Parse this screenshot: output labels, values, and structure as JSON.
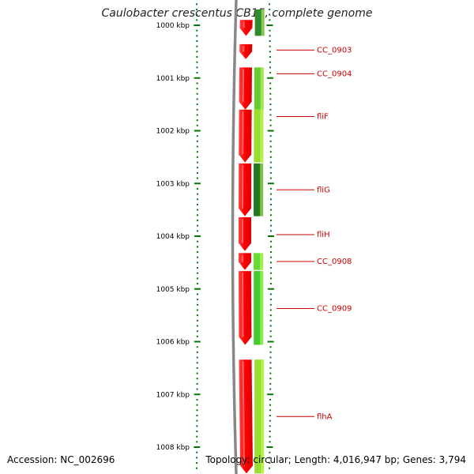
{
  "title": "Caulobacter crescentus CB15, complete genome",
  "footer": {
    "accession": "Accession: NC_002696",
    "summary": "Topology: circular; Length: 4,016,947 bp; Genes: 3,794"
  },
  "colors": {
    "forward_gene": "#ff0000",
    "backbone": "#888888",
    "ticks": "#007700",
    "label": "#cc0000"
  },
  "axis": {
    "unit": "kbp",
    "ticks": [
      {
        "pos": 1000,
        "label": "1000 kbp"
      },
      {
        "pos": 1001,
        "label": "1001 kbp"
      },
      {
        "pos": 1002,
        "label": "1002 kbp"
      },
      {
        "pos": 1003,
        "label": "1003 kbp"
      },
      {
        "pos": 1004,
        "label": "1004 kbp"
      },
      {
        "pos": 1005,
        "label": "1005 kbp"
      },
      {
        "pos": 1006,
        "label": "1006 kbp"
      },
      {
        "pos": 1007,
        "label": "1007 kbp"
      },
      {
        "pos": 1008,
        "label": "1008 kbp"
      }
    ]
  },
  "genes": [
    {
      "name": "",
      "start": 999.9,
      "end": 1000.2
    },
    {
      "name": "CC_0903",
      "start": 1000.36,
      "end": 1000.64
    },
    {
      "name": "CC_0904",
      "start": 1000.8,
      "end": 1001.6
    },
    {
      "name": "fliF",
      "start": 1001.6,
      "end": 1002.6
    },
    {
      "name": "fliG",
      "start": 1002.62,
      "end": 1003.62
    },
    {
      "name": "fliH",
      "start": 1003.64,
      "end": 1004.28
    },
    {
      "name": "CC_0908",
      "start": 1004.32,
      "end": 1004.64
    },
    {
      "name": "CC_0909",
      "start": 1004.66,
      "end": 1006.06
    },
    {
      "name": "flhA",
      "start": 1006.34,
      "end": 1008.5
    }
  ],
  "labels": [
    {
      "text": "CC_0903",
      "pos": 1000.47
    },
    {
      "text": "CC_0904",
      "pos": 1000.92
    },
    {
      "text": "fliF",
      "pos": 1001.73
    },
    {
      "text": "fliG",
      "pos": 1003.12
    },
    {
      "text": "fliH",
      "pos": 1003.97
    },
    {
      "text": "CC_0908",
      "pos": 1004.48
    },
    {
      "text": "CC_0909",
      "pos": 1005.37
    },
    {
      "text": "flhA",
      "pos": 1007.42
    }
  ],
  "cog_bars": [
    {
      "start": 999.7,
      "end": 1000.2,
      "color": "#2e8b2e"
    },
    {
      "start": 1000.8,
      "end": 1001.6,
      "color": "#66cc33"
    },
    {
      "start": 1001.6,
      "end": 1002.6,
      "color": "#99dd33"
    },
    {
      "start": 1002.62,
      "end": 1003.62,
      "color": "#227722"
    },
    {
      "start": 1004.32,
      "end": 1004.64,
      "color": "#66dd33"
    },
    {
      "start": 1004.66,
      "end": 1006.06,
      "color": "#44cc33"
    },
    {
      "start": 1006.34,
      "end": 1008.5,
      "color": "#99dd33"
    }
  ]
}
